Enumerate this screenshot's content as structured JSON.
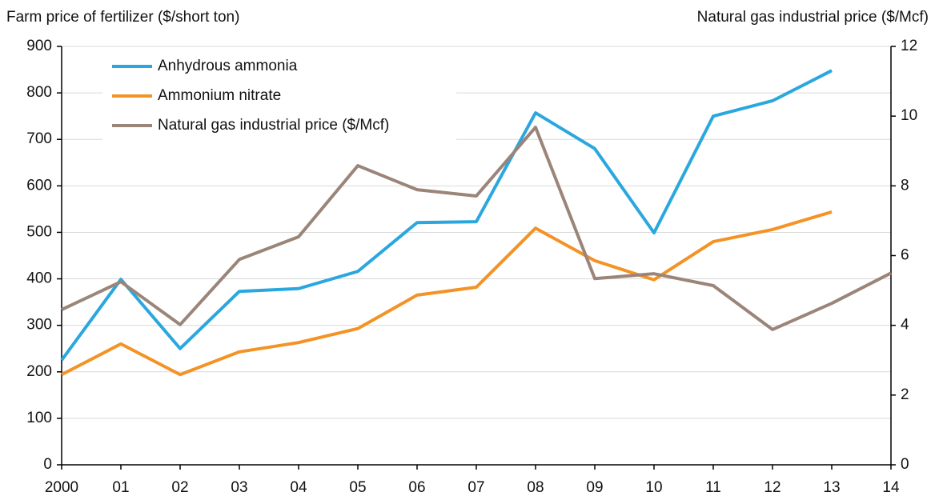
{
  "chart_data": {
    "type": "line",
    "y_label": "Farm price of fertilizer ($/short ton)",
    "y2_label": "Natural gas industrial price ($/Mcf)",
    "categories": [
      "2000",
      "01",
      "02",
      "03",
      "04",
      "05",
      "06",
      "07",
      "08",
      "09",
      "10",
      "11",
      "12",
      "13",
      "14"
    ],
    "series": [
      {
        "name": "Anhydrous ammonia",
        "color": "#2aa7de",
        "values": [
          225,
          399,
          250,
          373,
          379,
          416,
          521,
          523,
          757,
          680,
          499,
          750,
          783,
          848,
          null
        ]
      },
      {
        "name": "Ammonium nitrate",
        "color": "#f39325",
        "values": [
          194,
          260,
          194,
          243,
          263,
          293,
          365,
          382,
          509,
          439,
          398,
          480,
          506,
          544,
          null
        ]
      },
      {
        "name": "Natural gas industrial price ($/Mcf)",
        "color": "#9b8579",
        "axis": "y2",
        "values": [
          4.45,
          5.25,
          4.02,
          5.89,
          6.54,
          8.58,
          7.89,
          7.71,
          9.68,
          5.34,
          5.48,
          5.14,
          3.88,
          4.63,
          5.5
        ]
      }
    ],
    "ylim": [
      0,
      900
    ],
    "yticks": [
      0,
      100,
      200,
      300,
      400,
      500,
      600,
      700,
      800,
      900
    ],
    "y2lim": [
      0,
      12
    ],
    "y2ticks": [
      0,
      2,
      4,
      6,
      8,
      10,
      12
    ],
    "grid": true,
    "legend": "upper left"
  }
}
